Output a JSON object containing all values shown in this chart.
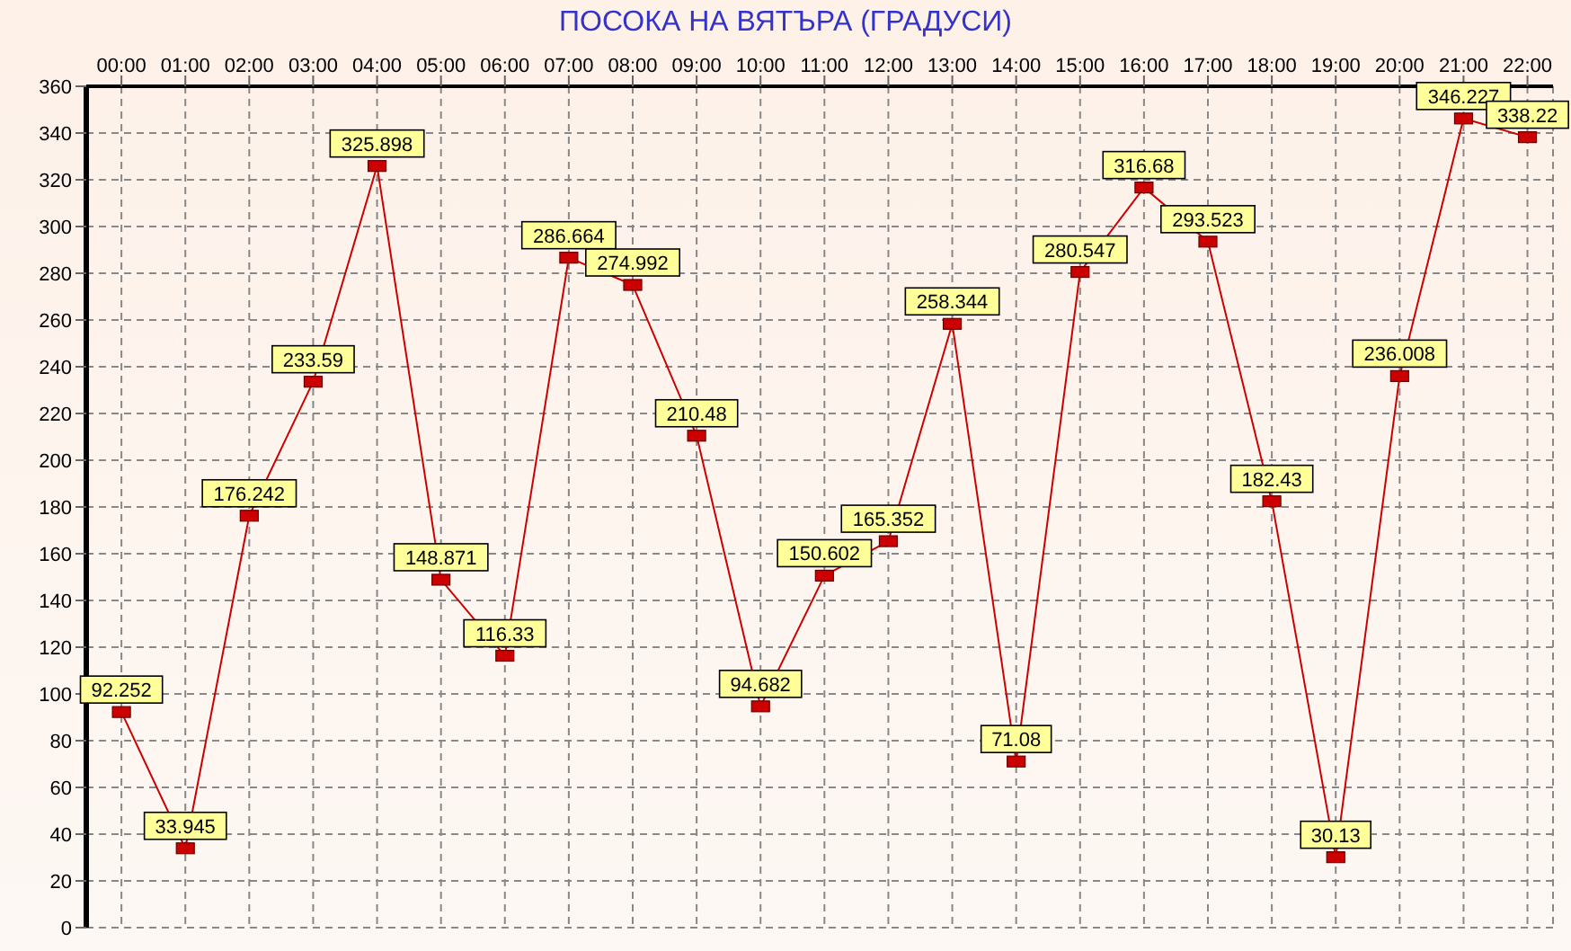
{
  "chart_data": {
    "type": "line",
    "title": "ПОСОКА НА ВЯТЪРА    (ГРАДУСИ)",
    "categories": [
      "00:00",
      "01:00",
      "02:00",
      "03:00",
      "04:00",
      "05:00",
      "06:00",
      "07:00",
      "08:00",
      "09:00",
      "10:00",
      "11:00",
      "12:00",
      "13:00",
      "14:00",
      "15:00",
      "16:00",
      "17:00",
      "18:00",
      "19:00",
      "20:00",
      "21:00",
      "22:00"
    ],
    "series": [
      {
        "color": "#cc0000",
        "values": [
          92.252,
          33.945,
          176.242,
          233.59,
          325.898,
          148.871,
          116.33,
          286.664,
          274.992,
          210.48,
          94.682,
          150.602,
          165.352,
          258.344,
          71.08,
          280.547,
          316.68,
          293.523,
          182.43,
          30.13,
          236.008,
          346.227,
          338.22
        ]
      }
    ],
    "ylim": [
      0,
      360
    ],
    "yticks": [
      0,
      20,
      40,
      60,
      80,
      100,
      120,
      140,
      160,
      180,
      200,
      220,
      240,
      260,
      280,
      300,
      320,
      340,
      360
    ],
    "grid": true,
    "marker": "square",
    "line_style": "solid",
    "data_labels": true,
    "legend": false
  }
}
